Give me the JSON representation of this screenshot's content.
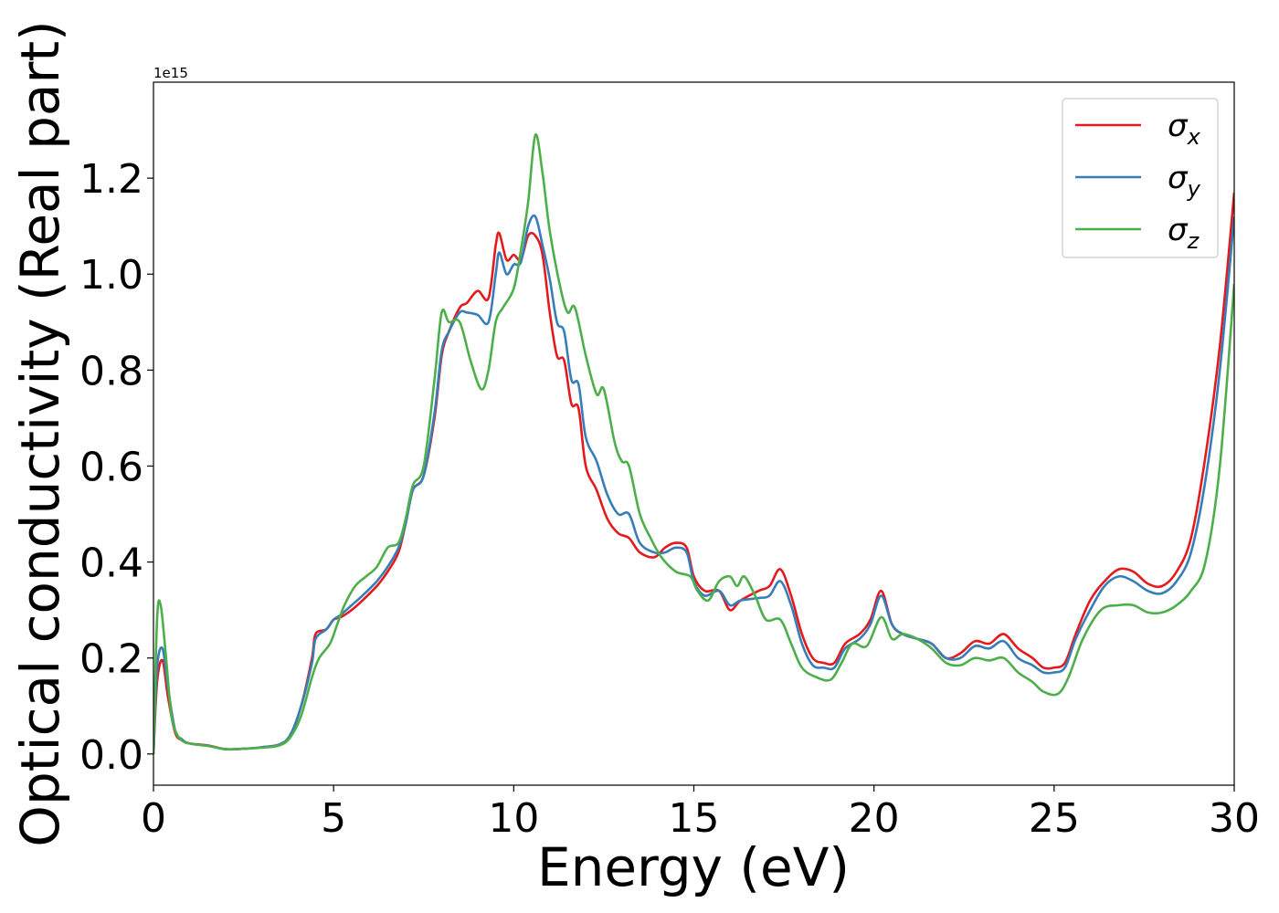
{
  "chart_data": {
    "type": "line",
    "xlabel": "Energy (eV)",
    "ylabel": "Optical conductivity (Real part)",
    "y_offset_label": "1e15",
    "xlim": [
      0,
      30
    ],
    "ylim": [
      -0.065,
      1.4
    ],
    "x_ticks": [
      0,
      5,
      10,
      15,
      20,
      25,
      30
    ],
    "y_ticks": [
      0.0,
      0.2,
      0.4,
      0.6,
      0.8,
      1.0,
      1.2
    ],
    "x_tick_labels": [
      "0",
      "5",
      "10",
      "15",
      "20",
      "25",
      "30"
    ],
    "y_tick_labels": [
      "0.0",
      "0.2",
      "0.4",
      "0.6",
      "0.8",
      "1.0",
      "1.2"
    ],
    "legend_position": "top-right",
    "grid": false,
    "series": [
      {
        "name": "σx",
        "legend_symbol": "σ",
        "legend_subscript": "x",
        "color": "#e41a1c",
        "points": [
          [
            0,
            0
          ],
          [
            0.1,
            0.15
          ],
          [
            0.25,
            0.195
          ],
          [
            0.4,
            0.12
          ],
          [
            0.6,
            0.045
          ],
          [
            0.8,
            0.028
          ],
          [
            1,
            0.022
          ],
          [
            1.5,
            0.018
          ],
          [
            2,
            0.01
          ],
          [
            2.5,
            0.011
          ],
          [
            3,
            0.014
          ],
          [
            3.5,
            0.02
          ],
          [
            3.8,
            0.04
          ],
          [
            4.1,
            0.1
          ],
          [
            4.4,
            0.2
          ],
          [
            4.5,
            0.25
          ],
          [
            4.8,
            0.26
          ],
          [
            5,
            0.28
          ],
          [
            5.2,
            0.285
          ],
          [
            5.5,
            0.3
          ],
          [
            5.8,
            0.32
          ],
          [
            6.2,
            0.35
          ],
          [
            6.5,
            0.38
          ],
          [
            6.8,
            0.42
          ],
          [
            7,
            0.48
          ],
          [
            7.2,
            0.55
          ],
          [
            7.5,
            0.58
          ],
          [
            7.8,
            0.7
          ],
          [
            8,
            0.83
          ],
          [
            8.2,
            0.88
          ],
          [
            8.5,
            0.93
          ],
          [
            8.7,
            0.94
          ],
          [
            9,
            0.965
          ],
          [
            9.3,
            0.95
          ],
          [
            9.5,
            1.06
          ],
          [
            9.6,
            1.085
          ],
          [
            9.8,
            1.03
          ],
          [
            10,
            1.04
          ],
          [
            10.2,
            1.03
          ],
          [
            10.4,
            1.08
          ],
          [
            10.6,
            1.08
          ],
          [
            10.8,
            1.04
          ],
          [
            11,
            0.92
          ],
          [
            11.2,
            0.83
          ],
          [
            11.4,
            0.82
          ],
          [
            11.6,
            0.73
          ],
          [
            11.8,
            0.72
          ],
          [
            12,
            0.6
          ],
          [
            12.3,
            0.55
          ],
          [
            12.6,
            0.49
          ],
          [
            12.9,
            0.46
          ],
          [
            13.2,
            0.45
          ],
          [
            13.5,
            0.42
          ],
          [
            13.9,
            0.41
          ],
          [
            14.2,
            0.43
          ],
          [
            14.5,
            0.44
          ],
          [
            14.8,
            0.43
          ],
          [
            15,
            0.37
          ],
          [
            15.3,
            0.34
          ],
          [
            15.7,
            0.34
          ],
          [
            16,
            0.3
          ],
          [
            16.3,
            0.32
          ],
          [
            16.8,
            0.34
          ],
          [
            17.1,
            0.35
          ],
          [
            17.4,
            0.385
          ],
          [
            17.7,
            0.33
          ],
          [
            18,
            0.25
          ],
          [
            18.3,
            0.2
          ],
          [
            18.6,
            0.19
          ],
          [
            18.9,
            0.19
          ],
          [
            19.2,
            0.23
          ],
          [
            19.6,
            0.25
          ],
          [
            19.9,
            0.28
          ],
          [
            20.2,
            0.34
          ],
          [
            20.5,
            0.27
          ],
          [
            20.8,
            0.25
          ],
          [
            21.2,
            0.24
          ],
          [
            21.6,
            0.23
          ],
          [
            22,
            0.2
          ],
          [
            22.4,
            0.21
          ],
          [
            22.8,
            0.235
          ],
          [
            23.2,
            0.23
          ],
          [
            23.6,
            0.25
          ],
          [
            24,
            0.22
          ],
          [
            24.4,
            0.2
          ],
          [
            24.7,
            0.18
          ],
          [
            25,
            0.18
          ],
          [
            25.3,
            0.19
          ],
          [
            25.6,
            0.25
          ],
          [
            26,
            0.32
          ],
          [
            26.4,
            0.36
          ],
          [
            26.8,
            0.385
          ],
          [
            27.2,
            0.38
          ],
          [
            27.6,
            0.355
          ],
          [
            28,
            0.35
          ],
          [
            28.4,
            0.38
          ],
          [
            28.8,
            0.45
          ],
          [
            29.2,
            0.62
          ],
          [
            29.6,
            0.85
          ],
          [
            30,
            1.17
          ]
        ]
      },
      {
        "name": "σy",
        "legend_symbol": "σ",
        "legend_subscript": "y",
        "color": "#377eb8",
        "points": [
          [
            0,
            0
          ],
          [
            0.1,
            0.18
          ],
          [
            0.25,
            0.22
          ],
          [
            0.4,
            0.14
          ],
          [
            0.6,
            0.05
          ],
          [
            0.8,
            0.03
          ],
          [
            1,
            0.022
          ],
          [
            1.5,
            0.017
          ],
          [
            2,
            0.01
          ],
          [
            2.5,
            0.011
          ],
          [
            3,
            0.014
          ],
          [
            3.5,
            0.02
          ],
          [
            3.8,
            0.04
          ],
          [
            4.1,
            0.1
          ],
          [
            4.4,
            0.19
          ],
          [
            4.5,
            0.24
          ],
          [
            4.8,
            0.26
          ],
          [
            5,
            0.28
          ],
          [
            5.2,
            0.29
          ],
          [
            5.5,
            0.31
          ],
          [
            5.8,
            0.33
          ],
          [
            6.2,
            0.36
          ],
          [
            6.5,
            0.39
          ],
          [
            6.8,
            0.43
          ],
          [
            7,
            0.48
          ],
          [
            7.2,
            0.55
          ],
          [
            7.5,
            0.58
          ],
          [
            7.8,
            0.71
          ],
          [
            8,
            0.84
          ],
          [
            8.2,
            0.88
          ],
          [
            8.5,
            0.92
          ],
          [
            8.7,
            0.92
          ],
          [
            9,
            0.915
          ],
          [
            9.3,
            0.9
          ],
          [
            9.5,
            1.0
          ],
          [
            9.6,
            1.045
          ],
          [
            9.8,
            1.0
          ],
          [
            10,
            1.02
          ],
          [
            10.2,
            1.025
          ],
          [
            10.4,
            1.1
          ],
          [
            10.6,
            1.12
          ],
          [
            10.8,
            1.06
          ],
          [
            11,
            0.99
          ],
          [
            11.2,
            0.9
          ],
          [
            11.4,
            0.88
          ],
          [
            11.6,
            0.78
          ],
          [
            11.8,
            0.77
          ],
          [
            12,
            0.66
          ],
          [
            12.3,
            0.61
          ],
          [
            12.6,
            0.54
          ],
          [
            12.9,
            0.5
          ],
          [
            13.2,
            0.5
          ],
          [
            13.5,
            0.44
          ],
          [
            13.9,
            0.42
          ],
          [
            14.2,
            0.42
          ],
          [
            14.5,
            0.43
          ],
          [
            14.8,
            0.42
          ],
          [
            15,
            0.36
          ],
          [
            15.3,
            0.33
          ],
          [
            15.7,
            0.34
          ],
          [
            16,
            0.31
          ],
          [
            16.3,
            0.32
          ],
          [
            16.8,
            0.325
          ],
          [
            17.1,
            0.33
          ],
          [
            17.4,
            0.36
          ],
          [
            17.7,
            0.31
          ],
          [
            18,
            0.23
          ],
          [
            18.3,
            0.185
          ],
          [
            18.6,
            0.18
          ],
          [
            18.9,
            0.18
          ],
          [
            19.2,
            0.22
          ],
          [
            19.6,
            0.24
          ],
          [
            19.9,
            0.27
          ],
          [
            20.2,
            0.33
          ],
          [
            20.5,
            0.27
          ],
          [
            20.8,
            0.25
          ],
          [
            21.2,
            0.24
          ],
          [
            21.6,
            0.23
          ],
          [
            22,
            0.2
          ],
          [
            22.4,
            0.2
          ],
          [
            22.8,
            0.225
          ],
          [
            23.2,
            0.22
          ],
          [
            23.6,
            0.235
          ],
          [
            24,
            0.2
          ],
          [
            24.4,
            0.185
          ],
          [
            24.7,
            0.17
          ],
          [
            25,
            0.17
          ],
          [
            25.3,
            0.18
          ],
          [
            25.6,
            0.24
          ],
          [
            26,
            0.3
          ],
          [
            26.4,
            0.35
          ],
          [
            26.8,
            0.37
          ],
          [
            27.2,
            0.36
          ],
          [
            27.6,
            0.34
          ],
          [
            28,
            0.335
          ],
          [
            28.4,
            0.36
          ],
          [
            28.8,
            0.42
          ],
          [
            29.2,
            0.57
          ],
          [
            29.6,
            0.8
          ],
          [
            30,
            1.12
          ]
        ]
      },
      {
        "name": "σz",
        "legend_symbol": "σ",
        "legend_subscript": "z",
        "color": "#4daf4a",
        "points": [
          [
            0,
            0
          ],
          [
            0.1,
            0.28
          ],
          [
            0.2,
            0.31
          ],
          [
            0.35,
            0.2
          ],
          [
            0.5,
            0.08
          ],
          [
            0.7,
            0.035
          ],
          [
            1,
            0.022
          ],
          [
            1.5,
            0.017
          ],
          [
            2,
            0.01
          ],
          [
            2.5,
            0.011
          ],
          [
            3,
            0.013
          ],
          [
            3.5,
            0.018
          ],
          [
            3.8,
            0.035
          ],
          [
            4.1,
            0.08
          ],
          [
            4.4,
            0.16
          ],
          [
            4.6,
            0.2
          ],
          [
            4.9,
            0.23
          ],
          [
            5.1,
            0.27
          ],
          [
            5.3,
            0.31
          ],
          [
            5.6,
            0.35
          ],
          [
            5.9,
            0.37
          ],
          [
            6.2,
            0.39
          ],
          [
            6.5,
            0.43
          ],
          [
            6.8,
            0.44
          ],
          [
            7,
            0.49
          ],
          [
            7.2,
            0.56
          ],
          [
            7.5,
            0.6
          ],
          [
            7.8,
            0.78
          ],
          [
            8,
            0.92
          ],
          [
            8.2,
            0.9
          ],
          [
            8.5,
            0.9
          ],
          [
            8.8,
            0.82
          ],
          [
            9.1,
            0.76
          ],
          [
            9.3,
            0.8
          ],
          [
            9.5,
            0.9
          ],
          [
            9.7,
            0.93
          ],
          [
            10,
            0.97
          ],
          [
            10.2,
            1.05
          ],
          [
            10.4,
            1.15
          ],
          [
            10.6,
            1.29
          ],
          [
            10.8,
            1.21
          ],
          [
            11,
            1.09
          ],
          [
            11.3,
            0.97
          ],
          [
            11.5,
            0.92
          ],
          [
            11.7,
            0.93
          ],
          [
            12,
            0.83
          ],
          [
            12.3,
            0.75
          ],
          [
            12.5,
            0.76
          ],
          [
            12.8,
            0.65
          ],
          [
            13,
            0.61
          ],
          [
            13.2,
            0.6
          ],
          [
            13.5,
            0.5
          ],
          [
            13.8,
            0.45
          ],
          [
            14.1,
            0.41
          ],
          [
            14.5,
            0.38
          ],
          [
            14.9,
            0.37
          ],
          [
            15.1,
            0.34
          ],
          [
            15.4,
            0.32
          ],
          [
            15.7,
            0.36
          ],
          [
            16,
            0.37
          ],
          [
            16.2,
            0.35
          ],
          [
            16.4,
            0.37
          ],
          [
            16.7,
            0.33
          ],
          [
            17,
            0.28
          ],
          [
            17.4,
            0.28
          ],
          [
            17.7,
            0.23
          ],
          [
            18,
            0.18
          ],
          [
            18.4,
            0.16
          ],
          [
            18.8,
            0.155
          ],
          [
            19.1,
            0.19
          ],
          [
            19.4,
            0.23
          ],
          [
            19.8,
            0.225
          ],
          [
            20.2,
            0.285
          ],
          [
            20.5,
            0.24
          ],
          [
            20.8,
            0.25
          ],
          [
            21.2,
            0.24
          ],
          [
            21.6,
            0.22
          ],
          [
            22,
            0.19
          ],
          [
            22.4,
            0.185
          ],
          [
            22.8,
            0.2
          ],
          [
            23.2,
            0.195
          ],
          [
            23.6,
            0.2
          ],
          [
            24,
            0.17
          ],
          [
            24.4,
            0.15
          ],
          [
            24.7,
            0.13
          ],
          [
            25.1,
            0.125
          ],
          [
            25.4,
            0.16
          ],
          [
            25.8,
            0.24
          ],
          [
            26.3,
            0.3
          ],
          [
            26.8,
            0.31
          ],
          [
            27.2,
            0.31
          ],
          [
            27.6,
            0.295
          ],
          [
            28,
            0.295
          ],
          [
            28.4,
            0.31
          ],
          [
            28.8,
            0.34
          ],
          [
            29.2,
            0.4
          ],
          [
            29.6,
            0.6
          ],
          [
            30,
            0.98
          ]
        ]
      }
    ]
  }
}
